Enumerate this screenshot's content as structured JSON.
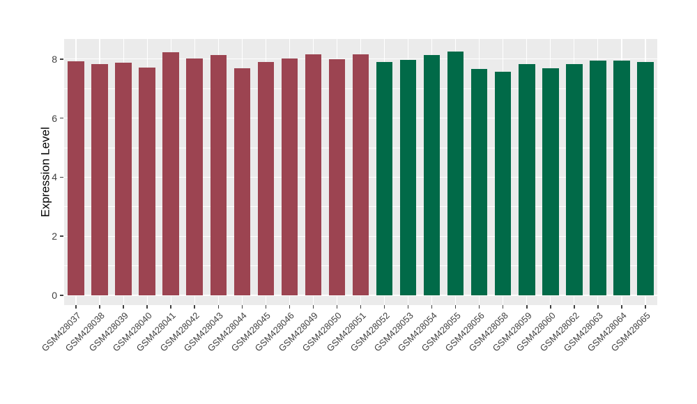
{
  "figure": {
    "background_color": "#FFFFFF",
    "panel_background_color": "#EBEBEB",
    "grid_color": "#FFFFFF",
    "tick_mark_color": "#404040",
    "axis_text_color": "#404040",
    "axis_title_color": "#000000"
  },
  "chart_data": {
    "type": "bar",
    "title": "",
    "xlabel": "",
    "ylabel": "Expression Level",
    "ylim": [
      0,
      8.68
    ],
    "yticks": [
      0,
      2,
      4,
      6,
      8
    ],
    "minor_yticks": [
      1,
      3,
      5,
      7
    ],
    "grid": "major and minor horizontal white lines, vertical white lines at category centers",
    "legend": "none",
    "categories": [
      "GSM428037",
      "GSM428038",
      "GSM428039",
      "GSM428040",
      "GSM428041",
      "GSM428042",
      "GSM428043",
      "GSM428044",
      "GSM428045",
      "GSM428046",
      "GSM428049",
      "GSM428050",
      "GSM428051",
      "GSM428052",
      "GSM428053",
      "GSM428054",
      "GSM428055",
      "GSM428056",
      "GSM428058",
      "GSM428059",
      "GSM428060",
      "GSM428062",
      "GSM428063",
      "GSM428064",
      "GSM428065"
    ],
    "values": [
      7.93,
      7.84,
      7.88,
      7.72,
      8.24,
      8.02,
      8.14,
      7.7,
      7.91,
      8.02,
      8.17,
      7.99,
      8.16,
      7.91,
      7.96,
      8.14,
      8.25,
      7.67,
      7.57,
      7.84,
      7.68,
      7.84,
      7.94,
      7.94,
      7.9
    ],
    "groups": [
      "A",
      "A",
      "A",
      "A",
      "A",
      "A",
      "A",
      "A",
      "A",
      "A",
      "A",
      "A",
      "A",
      "B",
      "B",
      "B",
      "B",
      "B",
      "B",
      "B",
      "B",
      "B",
      "B",
      "B",
      "B"
    ],
    "group_colors": {
      "A": "#9C4451",
      "B": "#016A48"
    }
  }
}
